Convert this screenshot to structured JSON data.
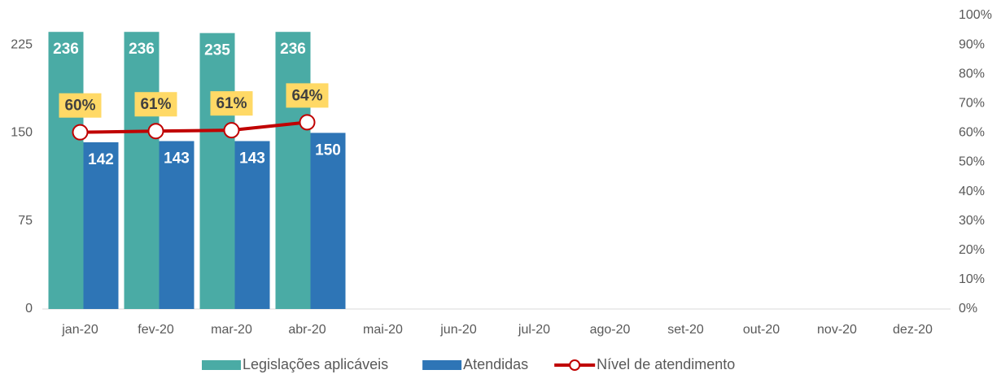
{
  "chart_data": {
    "type": "bar_line",
    "categories": [
      "jan-20",
      "fev-20",
      "mar-20",
      "abr-20",
      "mai-20",
      "jun-20",
      "jul-20",
      "ago-20",
      "set-20",
      "out-20",
      "nov-20",
      "dez-20"
    ],
    "series": [
      {
        "name": "Legislações aplicáveis",
        "color": "#4aaba5",
        "type": "bar",
        "values": [
          236,
          236,
          235,
          236,
          null,
          null,
          null,
          null,
          null,
          null,
          null,
          null
        ]
      },
      {
        "name": "Atendidas",
        "color": "#2e75b6",
        "type": "bar",
        "values": [
          142,
          143,
          143,
          150,
          null,
          null,
          null,
          null,
          null,
          null,
          null,
          null
        ]
      },
      {
        "name": "Nível de atendimento",
        "color": "#c00000",
        "type": "line",
        "axis": "y2",
        "values": [
          60.2,
          60.6,
          60.9,
          63.6,
          null,
          null,
          null,
          null,
          null,
          null,
          null,
          null
        ],
        "value_labels": [
          "60%",
          "61%",
          "61%",
          "64%",
          null,
          null,
          null,
          null,
          null,
          null,
          null,
          null
        ]
      }
    ],
    "ylim": [
      0,
      250
    ],
    "yticks": [
      0,
      75,
      150,
      225
    ],
    "y2lim": [
      0,
      100
    ],
    "y2ticks": [
      {
        "value": 0,
        "label": "0%"
      },
      {
        "value": 10,
        "label": "10%"
      },
      {
        "value": 20,
        "label": "20%"
      },
      {
        "value": 30,
        "label": "30%"
      },
      {
        "value": 40,
        "label": "40%"
      },
      {
        "value": 50,
        "label": "50%"
      },
      {
        "value": 60,
        "label": "60%"
      },
      {
        "value": 70,
        "label": "70%"
      },
      {
        "value": 80,
        "label": "80%"
      },
      {
        "value": 90,
        "label": "90%"
      },
      {
        "value": 100,
        "label": "100%"
      }
    ],
    "legend": "bottom",
    "grid": false
  }
}
